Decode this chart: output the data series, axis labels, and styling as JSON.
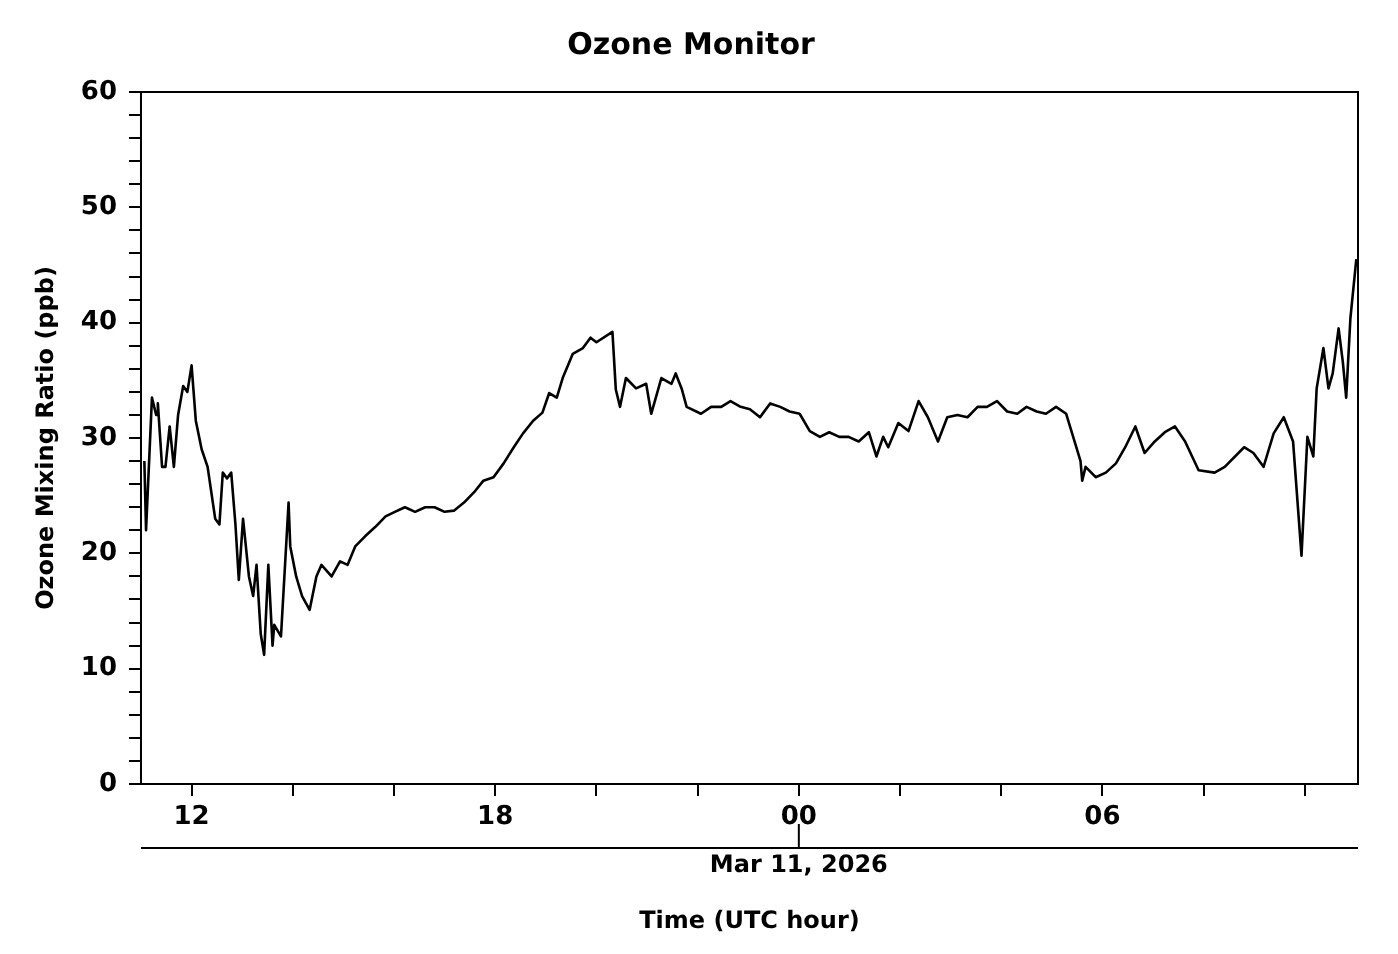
{
  "chart_data": {
    "type": "line",
    "title": "Ozone Monitor",
    "xlabel": "Time (UTC hour)",
    "ylabel": "Ozone Mixing Ratio (ppb)",
    "annotations": [
      "Mar 11, 2026"
    ],
    "xlim": [
      "2026-03-10T11:00",
      "2026-03-11T11:03"
    ],
    "ylim": [
      0,
      60
    ],
    "xticks": [
      {
        "value": "2026-03-10T12:00",
        "label": "12"
      },
      {
        "value": "2026-03-10T14:00",
        "label": null
      },
      {
        "value": "2026-03-10T16:00",
        "label": null
      },
      {
        "value": "2026-03-10T18:00",
        "label": "18"
      },
      {
        "value": "2026-03-10T20:00",
        "label": null
      },
      {
        "value": "2026-03-10T22:00",
        "label": null
      },
      {
        "value": "2026-03-11T00:00",
        "label": "00"
      },
      {
        "value": "2026-03-11T02:00",
        "label": null
      },
      {
        "value": "2026-03-11T04:00",
        "label": null
      },
      {
        "value": "2026-03-11T06:00",
        "label": "06"
      },
      {
        "value": "2026-03-11T08:00",
        "label": null
      },
      {
        "value": "2026-03-11T10:00",
        "label": null
      }
    ],
    "yticks": [
      0,
      {
        "value": 2,
        "label": null
      },
      {
        "value": 4,
        "label": null
      },
      {
        "value": 6,
        "label": null
      },
      {
        "value": 8,
        "label": null
      },
      10,
      {
        "value": 12,
        "label": null
      },
      {
        "value": 14,
        "label": null
      },
      {
        "value": 16,
        "label": null
      },
      {
        "value": 18,
        "label": null
      },
      20,
      {
        "value": 22,
        "label": null
      },
      {
        "value": 24,
        "label": null
      },
      {
        "value": 26,
        "label": null
      },
      {
        "value": 28,
        "label": null
      },
      30,
      {
        "value": 32,
        "label": null
      },
      {
        "value": 34,
        "label": null
      },
      {
        "value": 36,
        "label": null
      },
      {
        "value": 38,
        "label": null
      },
      40,
      {
        "value": 42,
        "label": null
      },
      {
        "value": 44,
        "label": null
      },
      {
        "value": 46,
        "label": null
      },
      {
        "value": 48,
        "label": null
      },
      50,
      {
        "value": 52,
        "label": null
      },
      {
        "value": 54,
        "label": null
      },
      {
        "value": 56,
        "label": null
      },
      {
        "value": 58,
        "label": null
      },
      60
    ],
    "grid": false,
    "legend": false,
    "marker": "none",
    "line_style": "solid",
    "series": [
      {
        "color": "#000000",
        "x": [
          "2026-03-10T11:04",
          "2026-03-10T11:06",
          "2026-03-10T11:13",
          "2026-03-10T11:18",
          "2026-03-10T11:20",
          "2026-03-10T11:25",
          "2026-03-10T11:29",
          "2026-03-10T11:34",
          "2026-03-10T11:39",
          "2026-03-10T11:44",
          "2026-03-10T11:50",
          "2026-03-10T11:55",
          "2026-03-10T12:00",
          "2026-03-10T12:05",
          "2026-03-10T12:12",
          "2026-03-10T12:19",
          "2026-03-10T12:28",
          "2026-03-10T12:33",
          "2026-03-10T12:37",
          "2026-03-10T12:42",
          "2026-03-10T12:47",
          "2026-03-10T12:52",
          "2026-03-10T12:56",
          "2026-03-10T13:01",
          "2026-03-10T13:08",
          "2026-03-10T13:13",
          "2026-03-10T13:17",
          "2026-03-10T13:22",
          "2026-03-10T13:26",
          "2026-03-10T13:31",
          "2026-03-10T13:36",
          "2026-03-10T13:38",
          "2026-03-10T13:46",
          "2026-03-10T13:55",
          "2026-03-10T13:57",
          "2026-03-10T14:04",
          "2026-03-10T14:11",
          "2026-03-10T14:20",
          "2026-03-10T14:28",
          "2026-03-10T14:34",
          "2026-03-10T14:46",
          "2026-03-10T14:56",
          "2026-03-10T15:05",
          "2026-03-10T15:14",
          "2026-03-10T15:26",
          "2026-03-10T15:38",
          "2026-03-10T15:50",
          "2026-03-10T16:01",
          "2026-03-10T16:13",
          "2026-03-10T16:25",
          "2026-03-10T16:37",
          "2026-03-10T16:48",
          "2026-03-10T17:00",
          "2026-03-10T17:11",
          "2026-03-10T17:23",
          "2026-03-10T17:35",
          "2026-03-10T17:46",
          "2026-03-10T17:58",
          "2026-03-10T18:10",
          "2026-03-10T18:22",
          "2026-03-10T18:33",
          "2026-03-10T18:45",
          "2026-03-10T18:56",
          "2026-03-10T19:04",
          "2026-03-10T19:13",
          "2026-03-10T19:20",
          "2026-03-10T19:32",
          "2026-03-10T19:44",
          "2026-03-10T19:53",
          "2026-03-10T20:00",
          "2026-03-10T20:19",
          "2026-03-10T20:23",
          "2026-03-10T20:28",
          "2026-03-10T20:35",
          "2026-03-10T20:47",
          "2026-03-10T20:59",
          "2026-03-10T21:05",
          "2026-03-10T21:17",
          "2026-03-10T21:29",
          "2026-03-10T21:34",
          "2026-03-10T21:41",
          "2026-03-10T21:47",
          "2026-03-10T22:04",
          "2026-03-10T22:16",
          "2026-03-10T22:28",
          "2026-03-10T22:39",
          "2026-03-10T22:51",
          "2026-03-10T23:02",
          "2026-03-10T23:14",
          "2026-03-10T23:26",
          "2026-03-10T23:38",
          "2026-03-10T23:49",
          "2026-03-11T00:01",
          "2026-03-11T00:13",
          "2026-03-11T00:25",
          "2026-03-11T00:36",
          "2026-03-11T00:48",
          "2026-03-11T00:59",
          "2026-03-11T01:11",
          "2026-03-11T01:23",
          "2026-03-11T01:32",
          "2026-03-11T01:40",
          "2026-03-11T01:46",
          "2026-03-11T01:58",
          "2026-03-11T02:10",
          "2026-03-11T02:22",
          "2026-03-11T02:33",
          "2026-03-11T02:45",
          "2026-03-11T02:56",
          "2026-03-11T03:08",
          "2026-03-11T03:20",
          "2026-03-11T03:32",
          "2026-03-11T03:43",
          "2026-03-11T03:55",
          "2026-03-11T04:07",
          "2026-03-11T04:19",
          "2026-03-11T04:30",
          "2026-03-11T04:42",
          "2026-03-11T04:53",
          "2026-03-11T05:05",
          "2026-03-11T05:17",
          "2026-03-11T05:29",
          "2026-03-11T05:34",
          "2026-03-11T05:36",
          "2026-03-11T05:40",
          "2026-03-11T05:52",
          "2026-03-11T06:04",
          "2026-03-11T06:16",
          "2026-03-11T06:27",
          "2026-03-11T06:39",
          "2026-03-11T06:50",
          "2026-03-11T07:02",
          "2026-03-11T07:14",
          "2026-03-11T07:26",
          "2026-03-11T07:38",
          "2026-03-11T07:54",
          "2026-03-11T08:13",
          "2026-03-11T08:25",
          "2026-03-11T08:48",
          "2026-03-11T08:59",
          "2026-03-11T09:11",
          "2026-03-11T09:23",
          "2026-03-11T09:35",
          "2026-03-11T09:46",
          "2026-03-11T09:56",
          "2026-03-11T10:03",
          "2026-03-11T10:10",
          "2026-03-11T10:14",
          "2026-03-11T10:22",
          "2026-03-11T10:28",
          "2026-03-11T10:33",
          "2026-03-11T10:40",
          "2026-03-11T10:45",
          "2026-03-11T10:49",
          "2026-03-11T10:54",
          "2026-03-11T11:01"
        ],
        "values": [
          28,
          22,
          33.5,
          32,
          33,
          27.5,
          27.5,
          31,
          27.5,
          32,
          34.5,
          34,
          36.3,
          31.5,
          29,
          27.5,
          23,
          22.5,
          27,
          26.5,
          27,
          22.5,
          17.7,
          23,
          18,
          16.3,
          19,
          13,
          11.2,
          19,
          12,
          13.8,
          12.8,
          24.4,
          20.6,
          18,
          16.3,
          15.1,
          18,
          19,
          18,
          19.3,
          19,
          20.6,
          21.5,
          22.3,
          23.2,
          23.6,
          24,
          23.6,
          24,
          24,
          23.6,
          23.7,
          24.4,
          25.3,
          26.3,
          26.6,
          27.8,
          29.2,
          30.4,
          31.5,
          32.2,
          33.9,
          33.5,
          35.2,
          37.3,
          37.8,
          38.7,
          38.3,
          39.2,
          34.2,
          32.7,
          35.2,
          34.3,
          34.7,
          32.1,
          35.2,
          34.7,
          35.6,
          34.3,
          32.7,
          32.1,
          32.7,
          32.7,
          33.2,
          32.7,
          32.5,
          31.8,
          33,
          32.7,
          32.3,
          32.1,
          30.6,
          30.1,
          30.5,
          30.1,
          30.1,
          29.7,
          30.5,
          28.4,
          30.1,
          29.2,
          31.3,
          30.6,
          33.2,
          31.8,
          29.7,
          31.8,
          32,
          31.8,
          32.7,
          32.7,
          33.2,
          32.3,
          32.1,
          32.7,
          32.3,
          32.1,
          32.7,
          32.1,
          29.2,
          28,
          26.3,
          27.5,
          26.6,
          27,
          27.8,
          29.2,
          31,
          28.7,
          29.7,
          30.5,
          31,
          29.7,
          27.2,
          27,
          27.5,
          29.2,
          28.7,
          27.5,
          30.4,
          31.8,
          29.7,
          19.8,
          30.1,
          28.4,
          34.3,
          37.8,
          34.3,
          35.6,
          39.5,
          36.6,
          33.5,
          40.4,
          45.5
        ]
      }
    ]
  }
}
